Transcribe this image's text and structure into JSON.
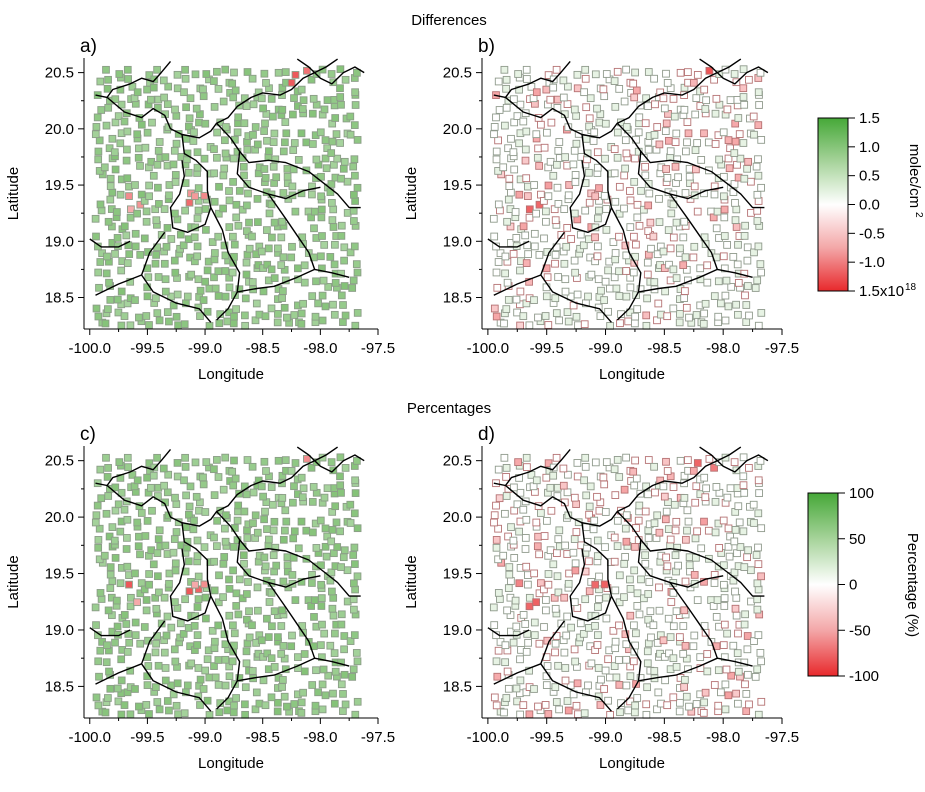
{
  "section_titles": {
    "top": "Differences",
    "bottom": "Percentages"
  },
  "colors": {
    "positive": "#4fa83d",
    "neutral": "#ffffff",
    "negative": "#e8292c",
    "border": "#000000"
  },
  "chart_data": [
    {
      "panel": "a)",
      "type": "scatter",
      "group": "Differences",
      "xlabel": "Longitude",
      "ylabel": "Latitude",
      "xlim": [
        -100.05,
        -97.5
      ],
      "ylim": [
        18.22,
        20.63
      ],
      "xticks": [
        "-100.0",
        "-99.5",
        "-99.0",
        "-98.5",
        "-98.0",
        "-97.5"
      ],
      "yticks": [
        "18.5",
        "19.0",
        "19.5",
        "20.0",
        "20.5"
      ],
      "color_range": [
        -1.5,
        1.5
      ],
      "typical_value": 0.9,
      "markers": "filled",
      "point_count_approx": 1000
    },
    {
      "panel": "b)",
      "type": "scatter",
      "group": "Differences",
      "xlabel": "Longitude",
      "ylabel": "Latitude",
      "xlim": [
        -100.05,
        -97.5
      ],
      "ylim": [
        18.22,
        20.63
      ],
      "xticks": [
        "-100.0",
        "-99.5",
        "-99.0",
        "-98.5",
        "-98.0",
        "-97.5"
      ],
      "yticks": [
        "18.5",
        "19.0",
        "19.5",
        "20.0",
        "20.5"
      ],
      "color_range": [
        -1.5,
        1.5
      ],
      "typical_value": 0.15,
      "markers": "open",
      "point_count_approx": 1000
    },
    {
      "panel": "c)",
      "type": "scatter",
      "group": "Percentages",
      "xlabel": "Longitude",
      "ylabel": "Latitude",
      "xlim": [
        -100.05,
        -97.5
      ],
      "ylim": [
        18.22,
        20.63
      ],
      "xticks": [
        "-100.0",
        "-99.5",
        "-99.0",
        "-98.5",
        "-98.0",
        "-97.5"
      ],
      "yticks": [
        "18.5",
        "19.0",
        "19.5",
        "20.0",
        "20.5"
      ],
      "color_range": [
        -100,
        100
      ],
      "typical_value": 60,
      "markers": "filled",
      "point_count_approx": 1000
    },
    {
      "panel": "d)",
      "type": "scatter",
      "group": "Percentages",
      "xlabel": "Longitude",
      "ylabel": "Latitude",
      "xlim": [
        -100.05,
        -97.5
      ],
      "ylim": [
        18.22,
        20.63
      ],
      "xticks": [
        "-100.0",
        "-99.5",
        "-99.0",
        "-98.5",
        "-98.0",
        "-97.5"
      ],
      "yticks": [
        "18.5",
        "19.0",
        "19.5",
        "20.0",
        "20.5"
      ],
      "color_range": [
        -100,
        100
      ],
      "typical_value": 10,
      "markers": "open",
      "point_count_approx": 1000
    }
  ],
  "colorbars": [
    {
      "label": "molec/cm",
      "label_superscript": "2",
      "range": [
        -1.5,
        1.5
      ],
      "ticks": [
        "1.5",
        "1.0",
        "0.5",
        "0.0",
        "-0.5",
        "-1.0",
        "1.5x10"
      ],
      "last_tick_superscript": "18"
    },
    {
      "label": "Percentage (%)",
      "range": [
        -100,
        100
      ],
      "ticks": [
        "100",
        "50",
        "0",
        "-50",
        "-100"
      ]
    }
  ]
}
